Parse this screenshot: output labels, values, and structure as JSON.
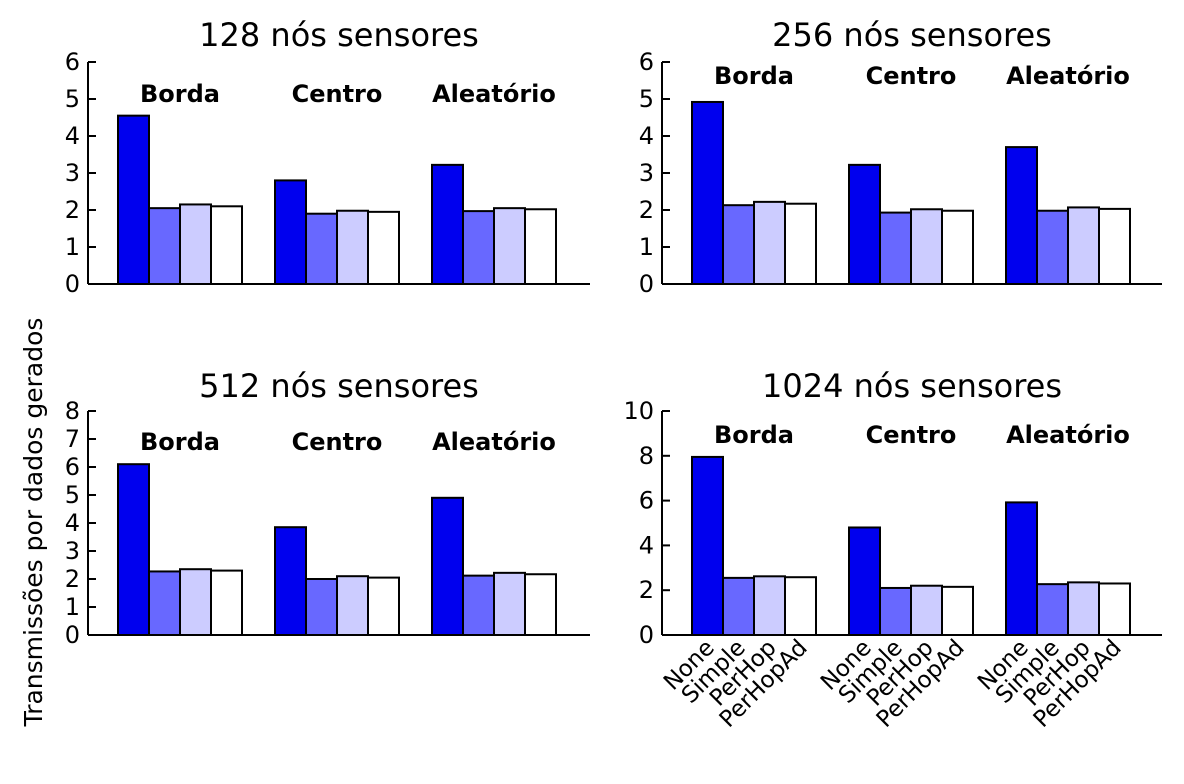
{
  "ylabel": "Transmissões por dados gerados",
  "colors": {
    "None": "#0000ee",
    "Simple": "#6868ff",
    "PerHop": "#ccccff",
    "PerHopAd": "#ffffff"
  },
  "chart_data": [
    {
      "type": "bar",
      "title": "128 nós sensores",
      "groups": [
        "Borda",
        "Centro",
        "Aleatório"
      ],
      "categories": [
        "None",
        "Simple",
        "PerHop",
        "PerHopAd"
      ],
      "series": [
        {
          "group": "Borda",
          "values": [
            4.55,
            2.05,
            2.15,
            2.1
          ]
        },
        {
          "group": "Centro",
          "values": [
            2.8,
            1.9,
            1.98,
            1.95
          ]
        },
        {
          "group": "Aleatório",
          "values": [
            3.22,
            1.97,
            2.05,
            2.02
          ]
        }
      ],
      "ylim": [
        0,
        6
      ],
      "yticks": [
        0,
        1,
        2,
        3,
        4,
        5,
        6
      ]
    },
    {
      "type": "bar",
      "title": "256 nós sensores",
      "groups": [
        "Borda",
        "Centro",
        "Aleatório"
      ],
      "categories": [
        "None",
        "Simple",
        "PerHop",
        "PerHopAd"
      ],
      "series": [
        {
          "group": "Borda",
          "values": [
            4.92,
            2.13,
            2.22,
            2.17
          ]
        },
        {
          "group": "Centro",
          "values": [
            3.22,
            1.93,
            2.02,
            1.98
          ]
        },
        {
          "group": "Aleatório",
          "values": [
            3.7,
            1.98,
            2.07,
            2.03
          ]
        }
      ],
      "ylim": [
        0,
        6
      ],
      "yticks": [
        0,
        1,
        2,
        3,
        4,
        5,
        6
      ]
    },
    {
      "type": "bar",
      "title": "512 nós sensores",
      "groups": [
        "Borda",
        "Centro",
        "Aleatório"
      ],
      "categories": [
        "None",
        "Simple",
        "PerHop",
        "PerHopAd"
      ],
      "series": [
        {
          "group": "Borda",
          "values": [
            6.1,
            2.27,
            2.35,
            2.3
          ]
        },
        {
          "group": "Centro",
          "values": [
            3.85,
            2.0,
            2.1,
            2.05
          ]
        },
        {
          "group": "Aleatório",
          "values": [
            4.9,
            2.12,
            2.22,
            2.17
          ]
        }
      ],
      "ylim": [
        0,
        8
      ],
      "yticks": [
        0,
        1,
        2,
        3,
        4,
        5,
        6,
        7,
        8
      ]
    },
    {
      "type": "bar",
      "title": "1024 nós sensores",
      "groups": [
        "Borda",
        "Centro",
        "Aleatório"
      ],
      "categories": [
        "None",
        "Simple",
        "PerHop",
        "PerHopAd"
      ],
      "series": [
        {
          "group": "Borda",
          "values": [
            7.95,
            2.55,
            2.62,
            2.58
          ]
        },
        {
          "group": "Centro",
          "values": [
            4.8,
            2.1,
            2.2,
            2.15
          ]
        },
        {
          "group": "Aleatório",
          "values": [
            5.92,
            2.27,
            2.35,
            2.3
          ]
        }
      ],
      "ylim": [
        0,
        10
      ],
      "yticks": [
        0,
        2,
        4,
        6,
        8,
        10
      ],
      "show_category_labels": true
    }
  ]
}
